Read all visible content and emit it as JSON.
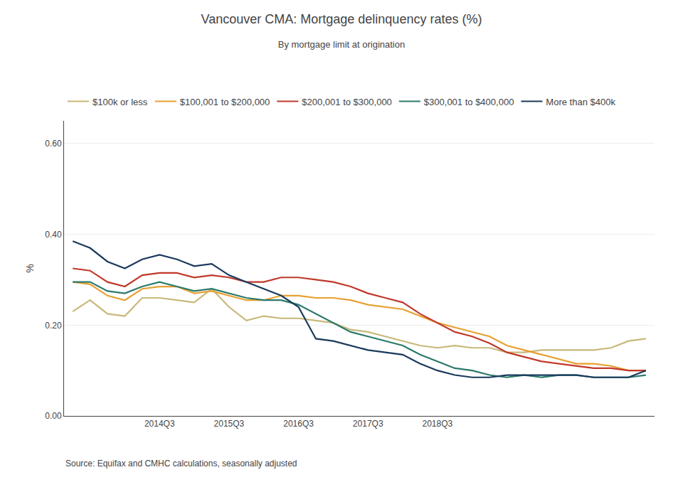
{
  "chart_data": {
    "type": "line",
    "title": "Vancouver CMA: Mortgage delinquency rates (%)",
    "subtitle": "By mortgage limit at origination",
    "ylabel": "%",
    "annotations": [
      "Source: Equifax and CMHC calculations, seasonally adjusted"
    ],
    "categories": [
      null,
      null,
      null,
      null,
      null,
      "2014Q3",
      null,
      null,
      null,
      "2015Q3",
      null,
      null,
      null,
      "2016Q3",
      null,
      null,
      null,
      "2017Q3",
      null,
      null,
      null,
      "2018Q3",
      null,
      null,
      null,
      null,
      null,
      null,
      null,
      null,
      null,
      null,
      null,
      null
    ],
    "series": [
      {
        "name": "$100k or less",
        "color": "#c8b87a",
        "values": [
          0.23,
          0.255,
          0.225,
          0.22,
          0.26,
          0.26,
          0.255,
          0.25,
          0.28,
          0.24,
          0.21,
          0.22,
          0.215,
          0.215,
          0.21,
          0.205,
          0.19,
          0.185,
          0.175,
          0.165,
          0.155,
          0.15,
          0.155,
          0.15,
          0.15,
          0.14,
          0.14,
          0.145,
          0.145,
          0.145,
          0.145,
          0.15,
          0.165,
          0.17
        ]
      },
      {
        "name": "$100,001 to $200,000",
        "color": "#e8a030",
        "values": [
          0.295,
          0.29,
          0.265,
          0.255,
          0.28,
          0.285,
          0.285,
          0.27,
          0.275,
          0.265,
          0.255,
          0.255,
          0.265,
          0.265,
          0.26,
          0.26,
          0.255,
          0.245,
          0.24,
          0.235,
          0.22,
          0.205,
          0.195,
          0.185,
          0.175,
          0.155,
          0.145,
          0.135,
          0.125,
          0.115,
          0.115,
          0.11,
          0.1,
          0.1
        ]
      },
      {
        "name": "$200,001 to $300,000",
        "color": "#c0392b",
        "values": [
          0.325,
          0.32,
          0.295,
          0.285,
          0.31,
          0.315,
          0.315,
          0.305,
          0.31,
          0.305,
          0.295,
          0.295,
          0.305,
          0.305,
          0.3,
          0.295,
          0.285,
          0.27,
          0.26,
          0.25,
          0.225,
          0.205,
          0.185,
          0.175,
          0.16,
          0.14,
          0.13,
          0.12,
          0.115,
          0.11,
          0.105,
          0.105,
          0.1,
          0.1
        ]
      },
      {
        "name": "$300,001 to $400,000",
        "color": "#2a7a6a",
        "values": [
          0.295,
          0.295,
          0.275,
          0.27,
          0.285,
          0.295,
          0.285,
          0.275,
          0.28,
          0.27,
          0.26,
          0.255,
          0.255,
          0.245,
          0.225,
          0.205,
          0.185,
          0.175,
          0.165,
          0.155,
          0.135,
          0.12,
          0.105,
          0.1,
          0.09,
          0.085,
          0.09,
          0.085,
          0.09,
          0.09,
          0.085,
          0.085,
          0.085,
          0.09
        ]
      },
      {
        "name": "More than $400k",
        "color": "#1a3a5c",
        "values": [
          0.385,
          0.37,
          0.34,
          0.325,
          0.345,
          0.355,
          0.345,
          0.33,
          0.335,
          0.31,
          0.295,
          0.28,
          0.265,
          0.24,
          0.17,
          0.165,
          0.155,
          0.145,
          0.14,
          0.135,
          0.115,
          0.1,
          0.09,
          0.085,
          0.085,
          0.09,
          0.09,
          0.09,
          0.09,
          0.09,
          0.085,
          0.085,
          0.085,
          0.1
        ]
      }
    ],
    "ylim": [
      0.0,
      0.65
    ],
    "yticks": [
      {
        "value": 0.0,
        "label": "0.00"
      },
      {
        "value": 0.2,
        "label": "0.20"
      },
      {
        "value": 0.4,
        "label": "0.40"
      },
      {
        "value": 0.6,
        "label": "0.60"
      }
    ],
    "grid": true,
    "legend": "top"
  }
}
